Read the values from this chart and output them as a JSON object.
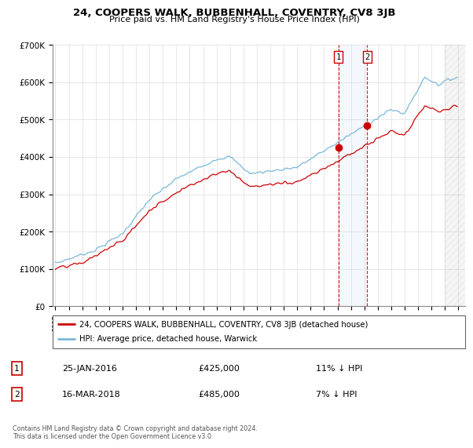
{
  "title": "24, COOPERS WALK, BUBBENHALL, COVENTRY, CV8 3JB",
  "subtitle": "Price paid vs. HM Land Registry's House Price Index (HPI)",
  "legend_line1": "24, COOPERS WALK, BUBBENHALL, COVENTRY, CV8 3JB (detached house)",
  "legend_line2": "HPI: Average price, detached house, Warwick",
  "transaction1_date": "25-JAN-2016",
  "transaction1_price": 425000,
  "transaction1_hpi_pct": "11% ↓ HPI",
  "transaction2_date": "16-MAR-2018",
  "transaction2_price": 485000,
  "transaction2_hpi_pct": "7% ↓ HPI",
  "footnote": "Contains HM Land Registry data © Crown copyright and database right 2024.\nThis data is licensed under the Open Government Licence v3.0.",
  "hpi_color": "#7ab8d9",
  "price_color": "#cc0000",
  "marker1_x": 2016.07,
  "marker2_x": 2018.21,
  "ylim_min": 0,
  "ylim_max": 700000,
  "xlim_min": 1994.8,
  "xlim_max": 2025.5,
  "hatch_xmin": 2024.0,
  "hatch_xmax": 2025.5,
  "fig_width": 6.0,
  "fig_height": 5.6,
  "dpi": 100
}
